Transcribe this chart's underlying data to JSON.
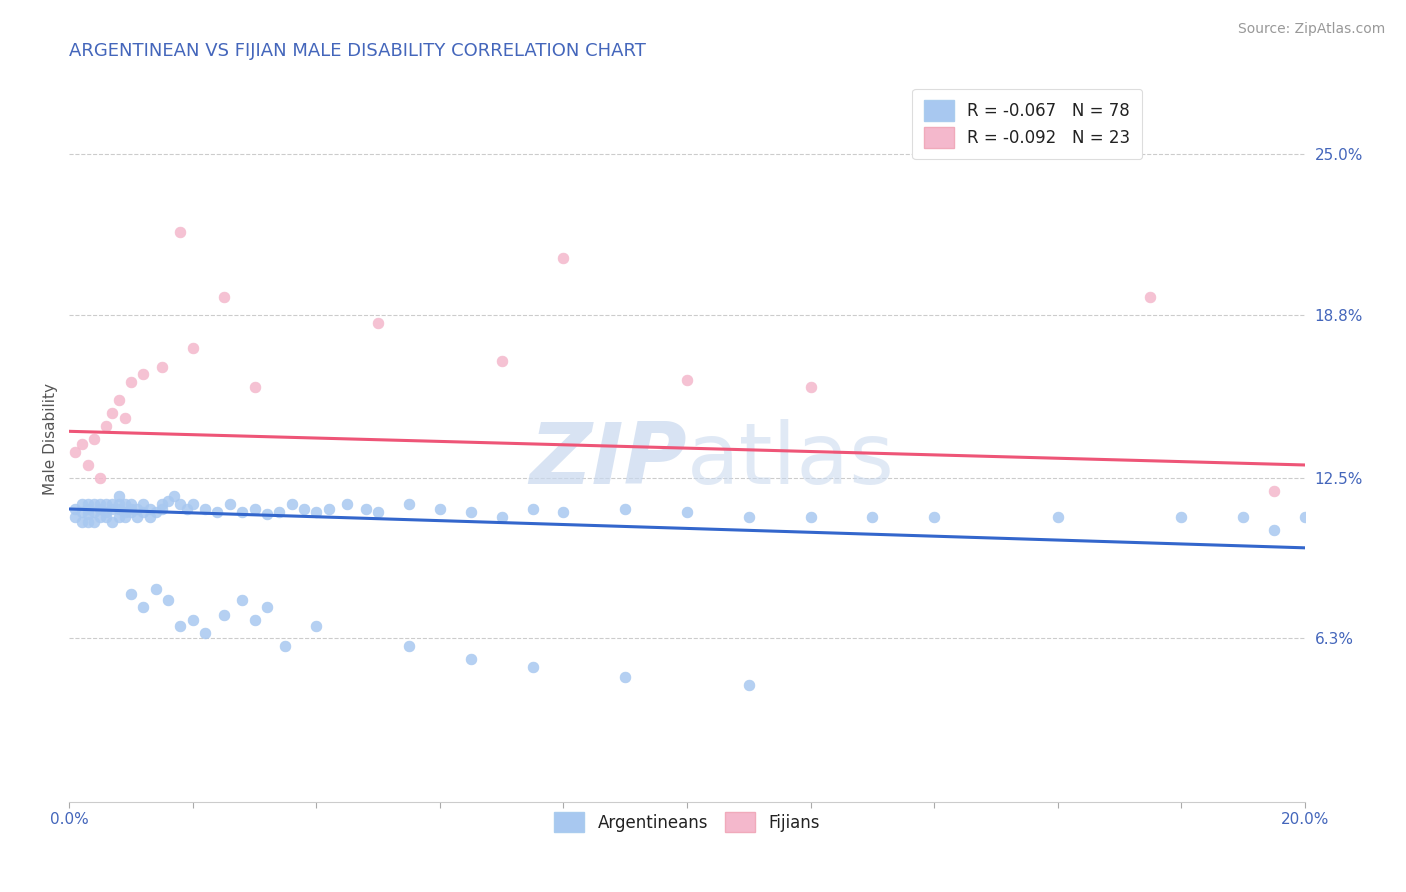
{
  "title": "ARGENTINEAN VS FIJIAN MALE DISABILITY CORRELATION CHART",
  "source": "Source: ZipAtlas.com",
  "ylabel": "Male Disability",
  "ylabel_right_ticks": [
    "25.0%",
    "18.8%",
    "12.5%",
    "6.3%"
  ],
  "ylabel_right_values": [
    0.25,
    0.188,
    0.125,
    0.063
  ],
  "legend_blue_label": "R = -0.067   N = 78",
  "legend_pink_label": "R = -0.092   N = 23",
  "blue_color": "#a8c8f0",
  "pink_color": "#f4b8cc",
  "blue_line_color": "#3366cc",
  "pink_line_color": "#ee5577",
  "title_color": "#4466bb",
  "watermark_color": "#c8d8ee",
  "xlim": [
    0.0,
    0.2
  ],
  "ylim": [
    0.0,
    0.28
  ],
  "blue_trendline": [
    0.0,
    0.2,
    0.113,
    0.098
  ],
  "pink_trendline": [
    0.0,
    0.2,
    0.143,
    0.13
  ],
  "argentinean_x": [
    0.001,
    0.001,
    0.002,
    0.002,
    0.002,
    0.003,
    0.003,
    0.003,
    0.003,
    0.004,
    0.004,
    0.004,
    0.005,
    0.005,
    0.005,
    0.006,
    0.006,
    0.006,
    0.007,
    0.007,
    0.007,
    0.008,
    0.008,
    0.008,
    0.008,
    0.009,
    0.009,
    0.009,
    0.01,
    0.01,
    0.01,
    0.011,
    0.011,
    0.012,
    0.012,
    0.013,
    0.013,
    0.014,
    0.015,
    0.015,
    0.016,
    0.017,
    0.018,
    0.019,
    0.02,
    0.022,
    0.024,
    0.026,
    0.028,
    0.03,
    0.032,
    0.034,
    0.036,
    0.038,
    0.04,
    0.042,
    0.045,
    0.048,
    0.05,
    0.055,
    0.06,
    0.065,
    0.07,
    0.075,
    0.08,
    0.09,
    0.1,
    0.11,
    0.12,
    0.13,
    0.14,
    0.16,
    0.18,
    0.19,
    0.195,
    0.2,
    0.03,
    0.035
  ],
  "argentinean_y": [
    0.113,
    0.11,
    0.112,
    0.115,
    0.108,
    0.111,
    0.113,
    0.115,
    0.108,
    0.112,
    0.115,
    0.108,
    0.113,
    0.11,
    0.115,
    0.112,
    0.115,
    0.11,
    0.113,
    0.115,
    0.108,
    0.113,
    0.11,
    0.115,
    0.118,
    0.112,
    0.115,
    0.11,
    0.113,
    0.112,
    0.115,
    0.113,
    0.11,
    0.112,
    0.115,
    0.113,
    0.11,
    0.112,
    0.115,
    0.113,
    0.116,
    0.118,
    0.115,
    0.113,
    0.115,
    0.113,
    0.112,
    0.115,
    0.112,
    0.113,
    0.111,
    0.112,
    0.115,
    0.113,
    0.112,
    0.113,
    0.115,
    0.113,
    0.112,
    0.115,
    0.113,
    0.112,
    0.11,
    0.113,
    0.112,
    0.113,
    0.112,
    0.11,
    0.11,
    0.11,
    0.11,
    0.11,
    0.11,
    0.11,
    0.105,
    0.11,
    0.07,
    0.06
  ],
  "argentinean_y_low": [
    0.08,
    0.075,
    0.082,
    0.078,
    0.068,
    0.07,
    0.065,
    0.072,
    0.078,
    0.075,
    0.068,
    0.06,
    0.055,
    0.052,
    0.048,
    0.045
  ],
  "argentinean_x_low": [
    0.01,
    0.012,
    0.014,
    0.016,
    0.018,
    0.02,
    0.022,
    0.025,
    0.028,
    0.032,
    0.04,
    0.055,
    0.065,
    0.075,
    0.09,
    0.11
  ],
  "fijian_x": [
    0.001,
    0.002,
    0.003,
    0.004,
    0.005,
    0.006,
    0.007,
    0.008,
    0.009,
    0.01,
    0.012,
    0.015,
    0.018,
    0.02,
    0.025,
    0.03,
    0.05,
    0.07,
    0.08,
    0.1,
    0.12,
    0.175,
    0.195
  ],
  "fijian_y": [
    0.135,
    0.138,
    0.13,
    0.14,
    0.125,
    0.145,
    0.15,
    0.155,
    0.148,
    0.162,
    0.165,
    0.168,
    0.22,
    0.175,
    0.195,
    0.16,
    0.185,
    0.17,
    0.21,
    0.163,
    0.16,
    0.195,
    0.12
  ]
}
